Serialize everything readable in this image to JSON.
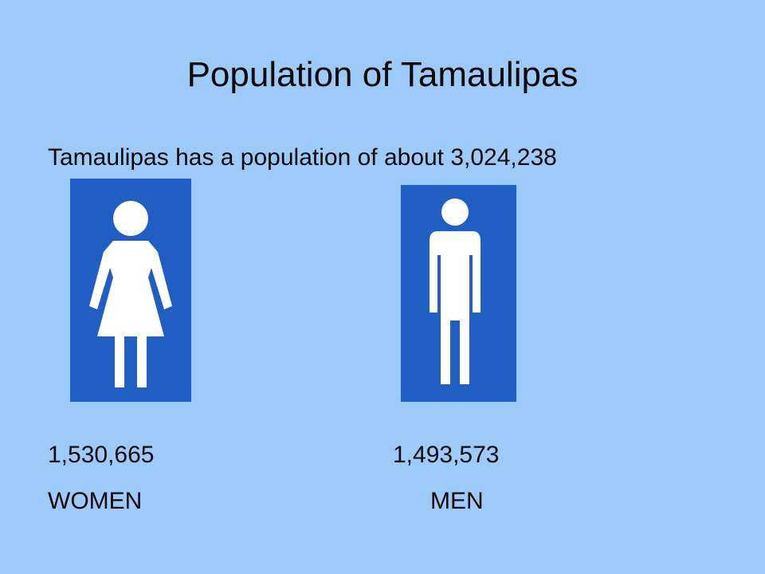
{
  "title": "Population of Tamaulipas",
  "body": "Tamaulipas has a population of about 3,024,238",
  "groups": [
    {
      "count": "1,530,665",
      "label": "WOMEN"
    },
    {
      "count": "1,493,573",
      "label": "MEN"
    }
  ]
}
